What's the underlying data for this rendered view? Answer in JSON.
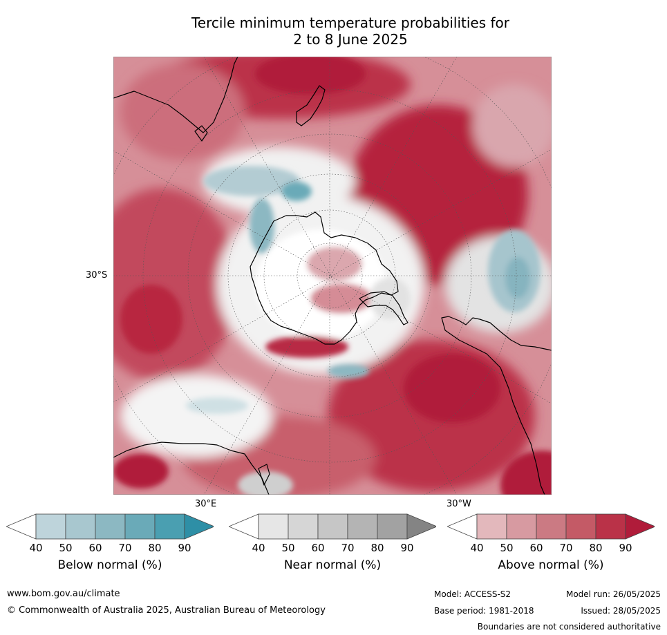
{
  "title": {
    "line1": "Tercile minimum temperature probabilities for",
    "line2": "2 to 8 June 2025"
  },
  "map": {
    "lat_label": "30°S",
    "lon_label_east": "30°E",
    "lon_label_west": "30°W"
  },
  "legends": [
    {
      "label": "Below normal (%)",
      "ticks": [
        "40",
        "50",
        "60",
        "70",
        "80",
        "90"
      ],
      "colors": [
        "#ffffff",
        "#bed4db",
        "#a8c7cf",
        "#8cb8c2",
        "#6aaab8",
        "#4a9fb1",
        "#2e8fa6"
      ]
    },
    {
      "label": "Near normal (%)",
      "ticks": [
        "40",
        "50",
        "60",
        "70",
        "80",
        "90"
      ],
      "colors": [
        "#ffffff",
        "#e6e6e6",
        "#d6d6d6",
        "#c6c6c6",
        "#b4b4b4",
        "#a2a2a2",
        "#848484"
      ]
    },
    {
      "label": "Above normal (%)",
      "ticks": [
        "40",
        "50",
        "60",
        "70",
        "80",
        "90"
      ],
      "colors": [
        "#ffffff",
        "#e3b8bc",
        "#d79aa1",
        "#cb7a83",
        "#c45a66",
        "#ba3248",
        "#b01c3a"
      ]
    }
  ],
  "footer": {
    "website": "www.bom.gov.au/climate",
    "copyright": "© Commonwealth of Australia 2025, Australian Bureau of Meteorology",
    "model": "Model: ACCESS-S2",
    "model_run": "Model run: 26/05/2025",
    "base_period": "Base period: 1981-2018",
    "issued": "Issued: 28/05/2025",
    "disclaimer": "Boundaries are not considered authoritative"
  }
}
